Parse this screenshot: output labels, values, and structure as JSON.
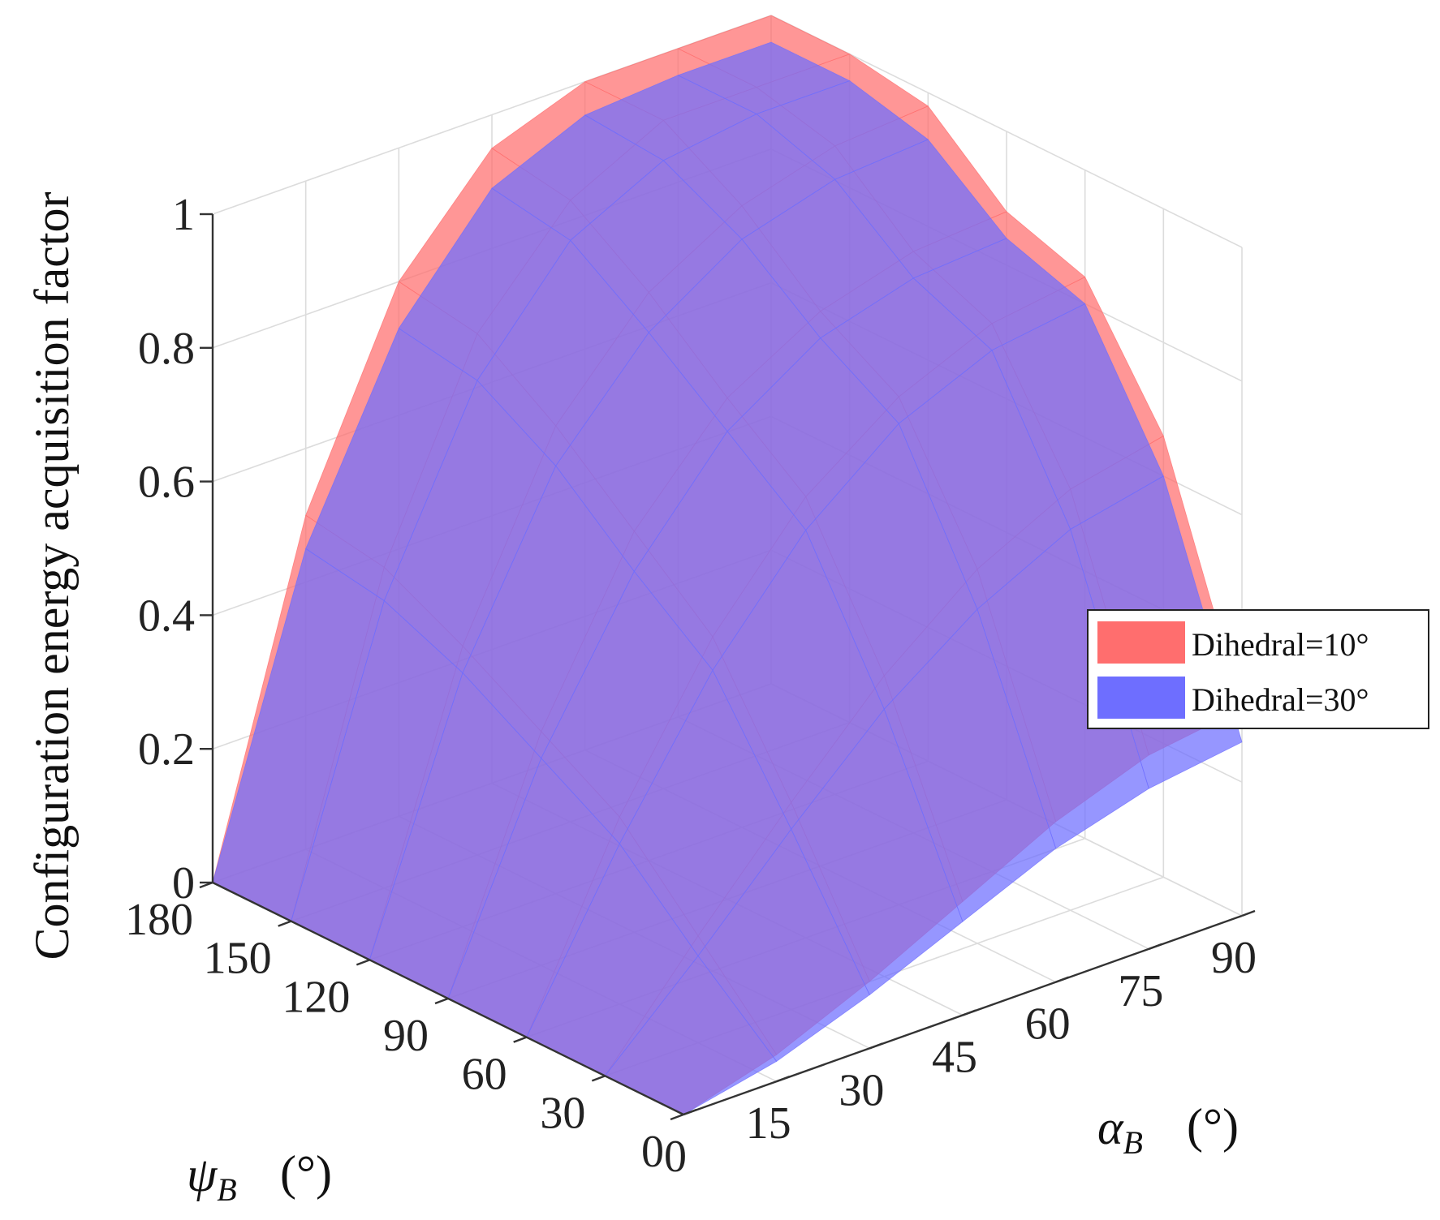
{
  "chart_data": {
    "type": "surface3d",
    "zlabel": "Configuration energy acquisition factor",
    "xlabel": "α_B",
    "xlabel_symbol": "α",
    "xlabel_sub": "B",
    "xlabel_unit": "(°)",
    "ylabel": "ψ_B",
    "ylabel_symbol": "ψ",
    "ylabel_sub": "B",
    "ylabel_unit": "(°)",
    "x_ticks": [
      "0",
      "15",
      "30",
      "45",
      "60",
      "75",
      "90"
    ],
    "y_ticks": [
      "0",
      "30",
      "60",
      "90",
      "120",
      "150",
      "180"
    ],
    "z_ticks": [
      "0",
      "0.2",
      "0.4",
      "0.6",
      "0.8",
      "1"
    ],
    "xlim": [
      0,
      90
    ],
    "ylim": [
      0,
      180
    ],
    "zlim": [
      0,
      1
    ],
    "legend_position": "right",
    "series": [
      {
        "name": "Dihedral=10°",
        "color": "#ff6e6e",
        "alpha_deg": [
          0,
          15,
          30,
          45,
          60,
          75,
          90
        ],
        "psi_deg": [
          0,
          30,
          60,
          90,
          120,
          150,
          180
        ],
        "values": [
          [
            0.0,
            0.04,
            0.1,
            0.17,
            0.24,
            0.29,
            0.31
          ],
          [
            0.0,
            0.16,
            0.31,
            0.45,
            0.56,
            0.63,
            0.66
          ],
          [
            0.0,
            0.28,
            0.5,
            0.66,
            0.76,
            0.82,
            0.84
          ],
          [
            0.0,
            0.35,
            0.6,
            0.75,
            0.83,
            0.87,
            0.88
          ],
          [
            0.0,
            0.42,
            0.7,
            0.85,
            0.93,
            0.97,
            0.98
          ],
          [
            0.0,
            0.48,
            0.78,
            0.93,
            1.0,
            1.0,
            1.0
          ],
          [
            0.0,
            0.5,
            0.8,
            0.95,
            1.0,
            1.0,
            1.0
          ]
        ]
      },
      {
        "name": "Dihedral=30°",
        "color": "#6e6eff",
        "alpha_deg": [
          0,
          15,
          30,
          45,
          60,
          75,
          90
        ],
        "psi_deg": [
          0,
          30,
          60,
          90,
          120,
          150,
          180
        ],
        "values": [
          [
            0.0,
            0.03,
            0.08,
            0.14,
            0.2,
            0.24,
            0.26
          ],
          [
            0.0,
            0.13,
            0.27,
            0.4,
            0.5,
            0.57,
            0.6
          ],
          [
            0.0,
            0.24,
            0.45,
            0.61,
            0.72,
            0.78,
            0.8
          ],
          [
            0.0,
            0.31,
            0.54,
            0.7,
            0.79,
            0.83,
            0.84
          ],
          [
            0.0,
            0.38,
            0.64,
            0.79,
            0.88,
            0.92,
            0.93
          ],
          [
            0.0,
            0.43,
            0.71,
            0.87,
            0.94,
            0.96,
            0.96
          ],
          [
            0.0,
            0.45,
            0.73,
            0.89,
            0.95,
            0.96,
            0.96
          ]
        ]
      }
    ]
  }
}
